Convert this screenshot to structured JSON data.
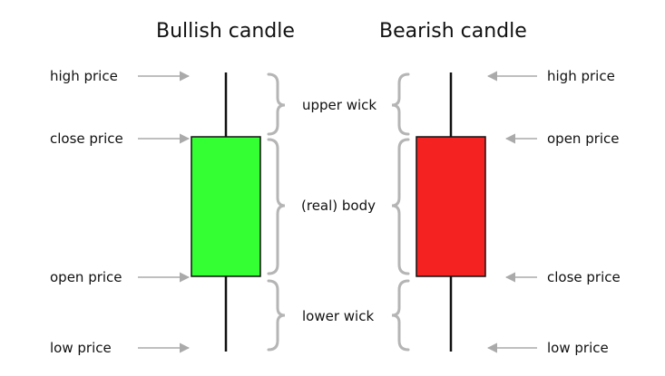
{
  "titles": {
    "bullish": "Bullish candle",
    "bearish": "Bearish candle"
  },
  "left_labels": {
    "high": "high price",
    "close": "close price",
    "open": "open price",
    "low": "low price"
  },
  "right_labels": {
    "high": "high price",
    "open": "open price",
    "close": "close price",
    "low": "low price"
  },
  "middle_labels": {
    "upper_wick": "upper wick",
    "body": "(real) body",
    "lower_wick": "lower wick"
  },
  "colors": {
    "bullish_body": "#33ff33",
    "bearish_body": "#f52222",
    "wick": "#111111",
    "arrow": "#aaaaaa",
    "brace": "#b5b5b5"
  }
}
